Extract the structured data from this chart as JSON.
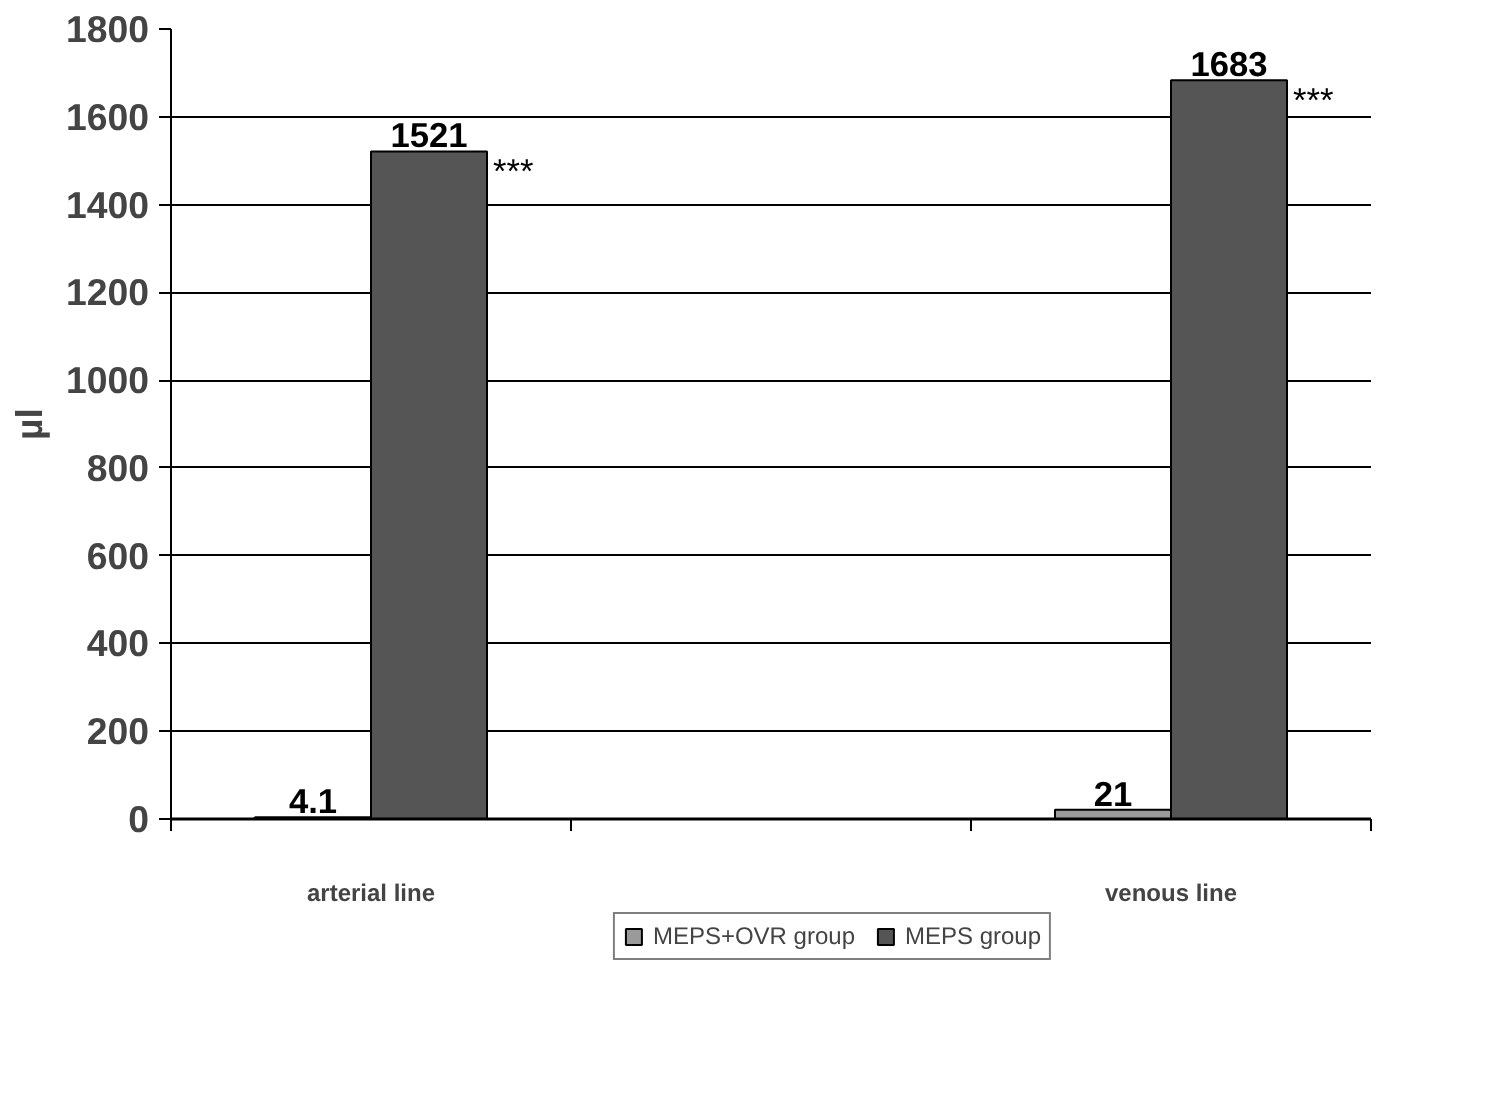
{
  "chart_data": {
    "type": "bar",
    "ylabel": "µl",
    "categories": [
      "arterial line",
      null,
      "venous line"
    ],
    "series": [
      {
        "name": "MEPS+OVR group",
        "color": "#9a9a9a",
        "values": [
          4.1,
          null,
          21
        ]
      },
      {
        "name": "MEPS group",
        "color": "#555555",
        "values": [
          1521,
          null,
          1683
        ]
      }
    ],
    "ylim": [
      0,
      1800
    ],
    "yticks": [
      0,
      200,
      400,
      600,
      800,
      1000,
      1200,
      1400,
      1600,
      1800
    ],
    "grid": "y",
    "legend": "bottom",
    "data_labels": true,
    "annotations": [
      "***",
      "***"
    ]
  }
}
